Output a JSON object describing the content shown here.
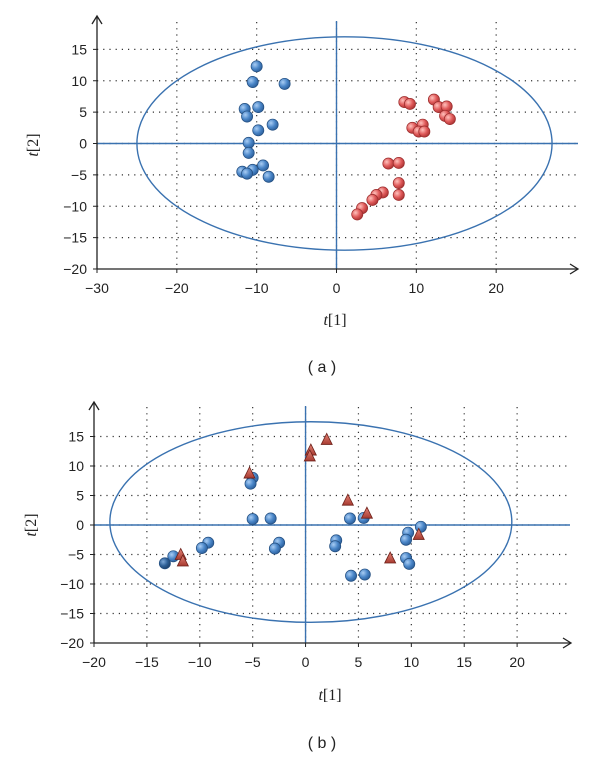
{
  "chart_data": [
    {
      "type": "scatter",
      "panel_label": "( a )",
      "xlabel_italic": "t",
      "xlabel_rest": "[1]",
      "ylabel_italic": "t",
      "ylabel_rest": "[2]",
      "xlim": [
        -30,
        30
      ],
      "ylim": [
        -20,
        20
      ],
      "xticks": [
        -30,
        -20,
        -10,
        0,
        10,
        20
      ],
      "yticks": [
        -20,
        -15,
        -10,
        -5,
        0,
        5,
        10,
        15
      ],
      "xtick_labels": [
        "−30",
        "−20",
        "−10",
        "0",
        "10",
        "20"
      ],
      "ytick_labels": [
        "−20",
        "−15",
        "−10",
        "−5",
        "0",
        "5",
        "10",
        "15"
      ],
      "grid": true,
      "ellipse": {
        "cx": 1,
        "cy": 0,
        "rx": 26,
        "ry": 17
      },
      "series": [
        {
          "name": "blue group",
          "marker": "circle",
          "color": "#4a86c8",
          "points": [
            [
              -10,
              12.3
            ],
            [
              -10.5,
              9.8
            ],
            [
              -6.5,
              9.5
            ],
            [
              -9.8,
              5.8
            ],
            [
              -11.5,
              5.5
            ],
            [
              -11.2,
              4.3
            ],
            [
              -8,
              3
            ],
            [
              -9.8,
              2.1
            ],
            [
              -11,
              0.1
            ],
            [
              -11,
              -1.5
            ],
            [
              -9.2,
              -3.5
            ],
            [
              -10.5,
              -4.2
            ],
            [
              -11.8,
              -4.5
            ],
            [
              -11.2,
              -4.8
            ],
            [
              -8.5,
              -5.3
            ]
          ]
        },
        {
          "name": "red group",
          "marker": "circle",
          "color": "#e05a5a",
          "points": [
            [
              8.5,
              6.6
            ],
            [
              9.2,
              6.3
            ],
            [
              12.2,
              7
            ],
            [
              12.8,
              5.8
            ],
            [
              13.8,
              5.9
            ],
            [
              13.6,
              4.4
            ],
            [
              14.2,
              3.9
            ],
            [
              10.8,
              3
            ],
            [
              9.5,
              2.5
            ],
            [
              10.3,
              1.9
            ],
            [
              11,
              1.9
            ],
            [
              6.5,
              -3.2
            ],
            [
              7.8,
              -3.1
            ],
            [
              7.8,
              -6.3
            ],
            [
              5.8,
              -7.8
            ],
            [
              5,
              -8.2
            ],
            [
              7.8,
              -8.2
            ],
            [
              4.5,
              -9
            ],
            [
              3.2,
              -10.3
            ],
            [
              2.6,
              -11.3
            ]
          ]
        }
      ]
    },
    {
      "type": "scatter",
      "panel_label": "( b )",
      "xlabel_italic": "t",
      "xlabel_rest": "[1]",
      "ylabel_italic": "t",
      "ylabel_rest": "[2]",
      "xlim": [
        -20,
        25
      ],
      "ylim": [
        -20,
        20
      ],
      "xticks": [
        -20,
        -15,
        -10,
        -5,
        0,
        5,
        10,
        15,
        20
      ],
      "yticks": [
        -20,
        -15,
        -10,
        -5,
        0,
        5,
        10,
        15
      ],
      "xtick_labels": [
        "−20",
        "−15",
        "−10",
        "−5",
        "0",
        "5",
        "10",
        "15",
        "20"
      ],
      "ytick_labels": [
        "−20",
        "−15",
        "−10",
        "−5",
        "0",
        "5",
        "10",
        "15"
      ],
      "grid": true,
      "ellipse": {
        "cx": 0.5,
        "cy": 0.5,
        "rx": 19,
        "ry": 17
      },
      "series": [
        {
          "name": "circles",
          "marker": "circle",
          "color": "#4a86c8",
          "points": [
            [
              -5,
              8
            ],
            [
              -5.2,
              7
            ],
            [
              -5,
              1
            ],
            [
              -3.3,
              1.1
            ],
            [
              -9.2,
              -3
            ],
            [
              -9.8,
              -3.9
            ],
            [
              -12.5,
              -5.3
            ],
            [
              -2.5,
              -3
            ],
            [
              -2.9,
              -4
            ],
            [
              2.9,
              -2.6
            ],
            [
              2.8,
              -3.6
            ],
            [
              4.2,
              1.1
            ],
            [
              5.5,
              1.2
            ],
            [
              4.3,
              -8.6
            ],
            [
              5.6,
              -8.4
            ],
            [
              9.7,
              -1.3
            ],
            [
              9.5,
              -2.5
            ],
            [
              10.9,
              -0.3
            ],
            [
              9.5,
              -5.6
            ],
            [
              9.8,
              -6.6
            ]
          ]
        },
        {
          "name": "dark circle",
          "marker": "circle",
          "color": "#2d5f96",
          "points": [
            [
              -13.3,
              -6.5
            ]
          ]
        },
        {
          "name": "triangles",
          "marker": "triangle",
          "color": "#c0453a",
          "points": [
            [
              -5.3,
              8.7
            ],
            [
              0.5,
              12.6
            ],
            [
              0.4,
              11.6
            ],
            [
              2,
              14.4
            ],
            [
              4,
              4.1
            ],
            [
              5.8,
              1.9
            ],
            [
              8,
              -5.7
            ],
            [
              10.7,
              -1.7
            ],
            [
              -11.8,
              -5.1
            ],
            [
              -11.6,
              -6.2
            ]
          ]
        }
      ]
    }
  ]
}
